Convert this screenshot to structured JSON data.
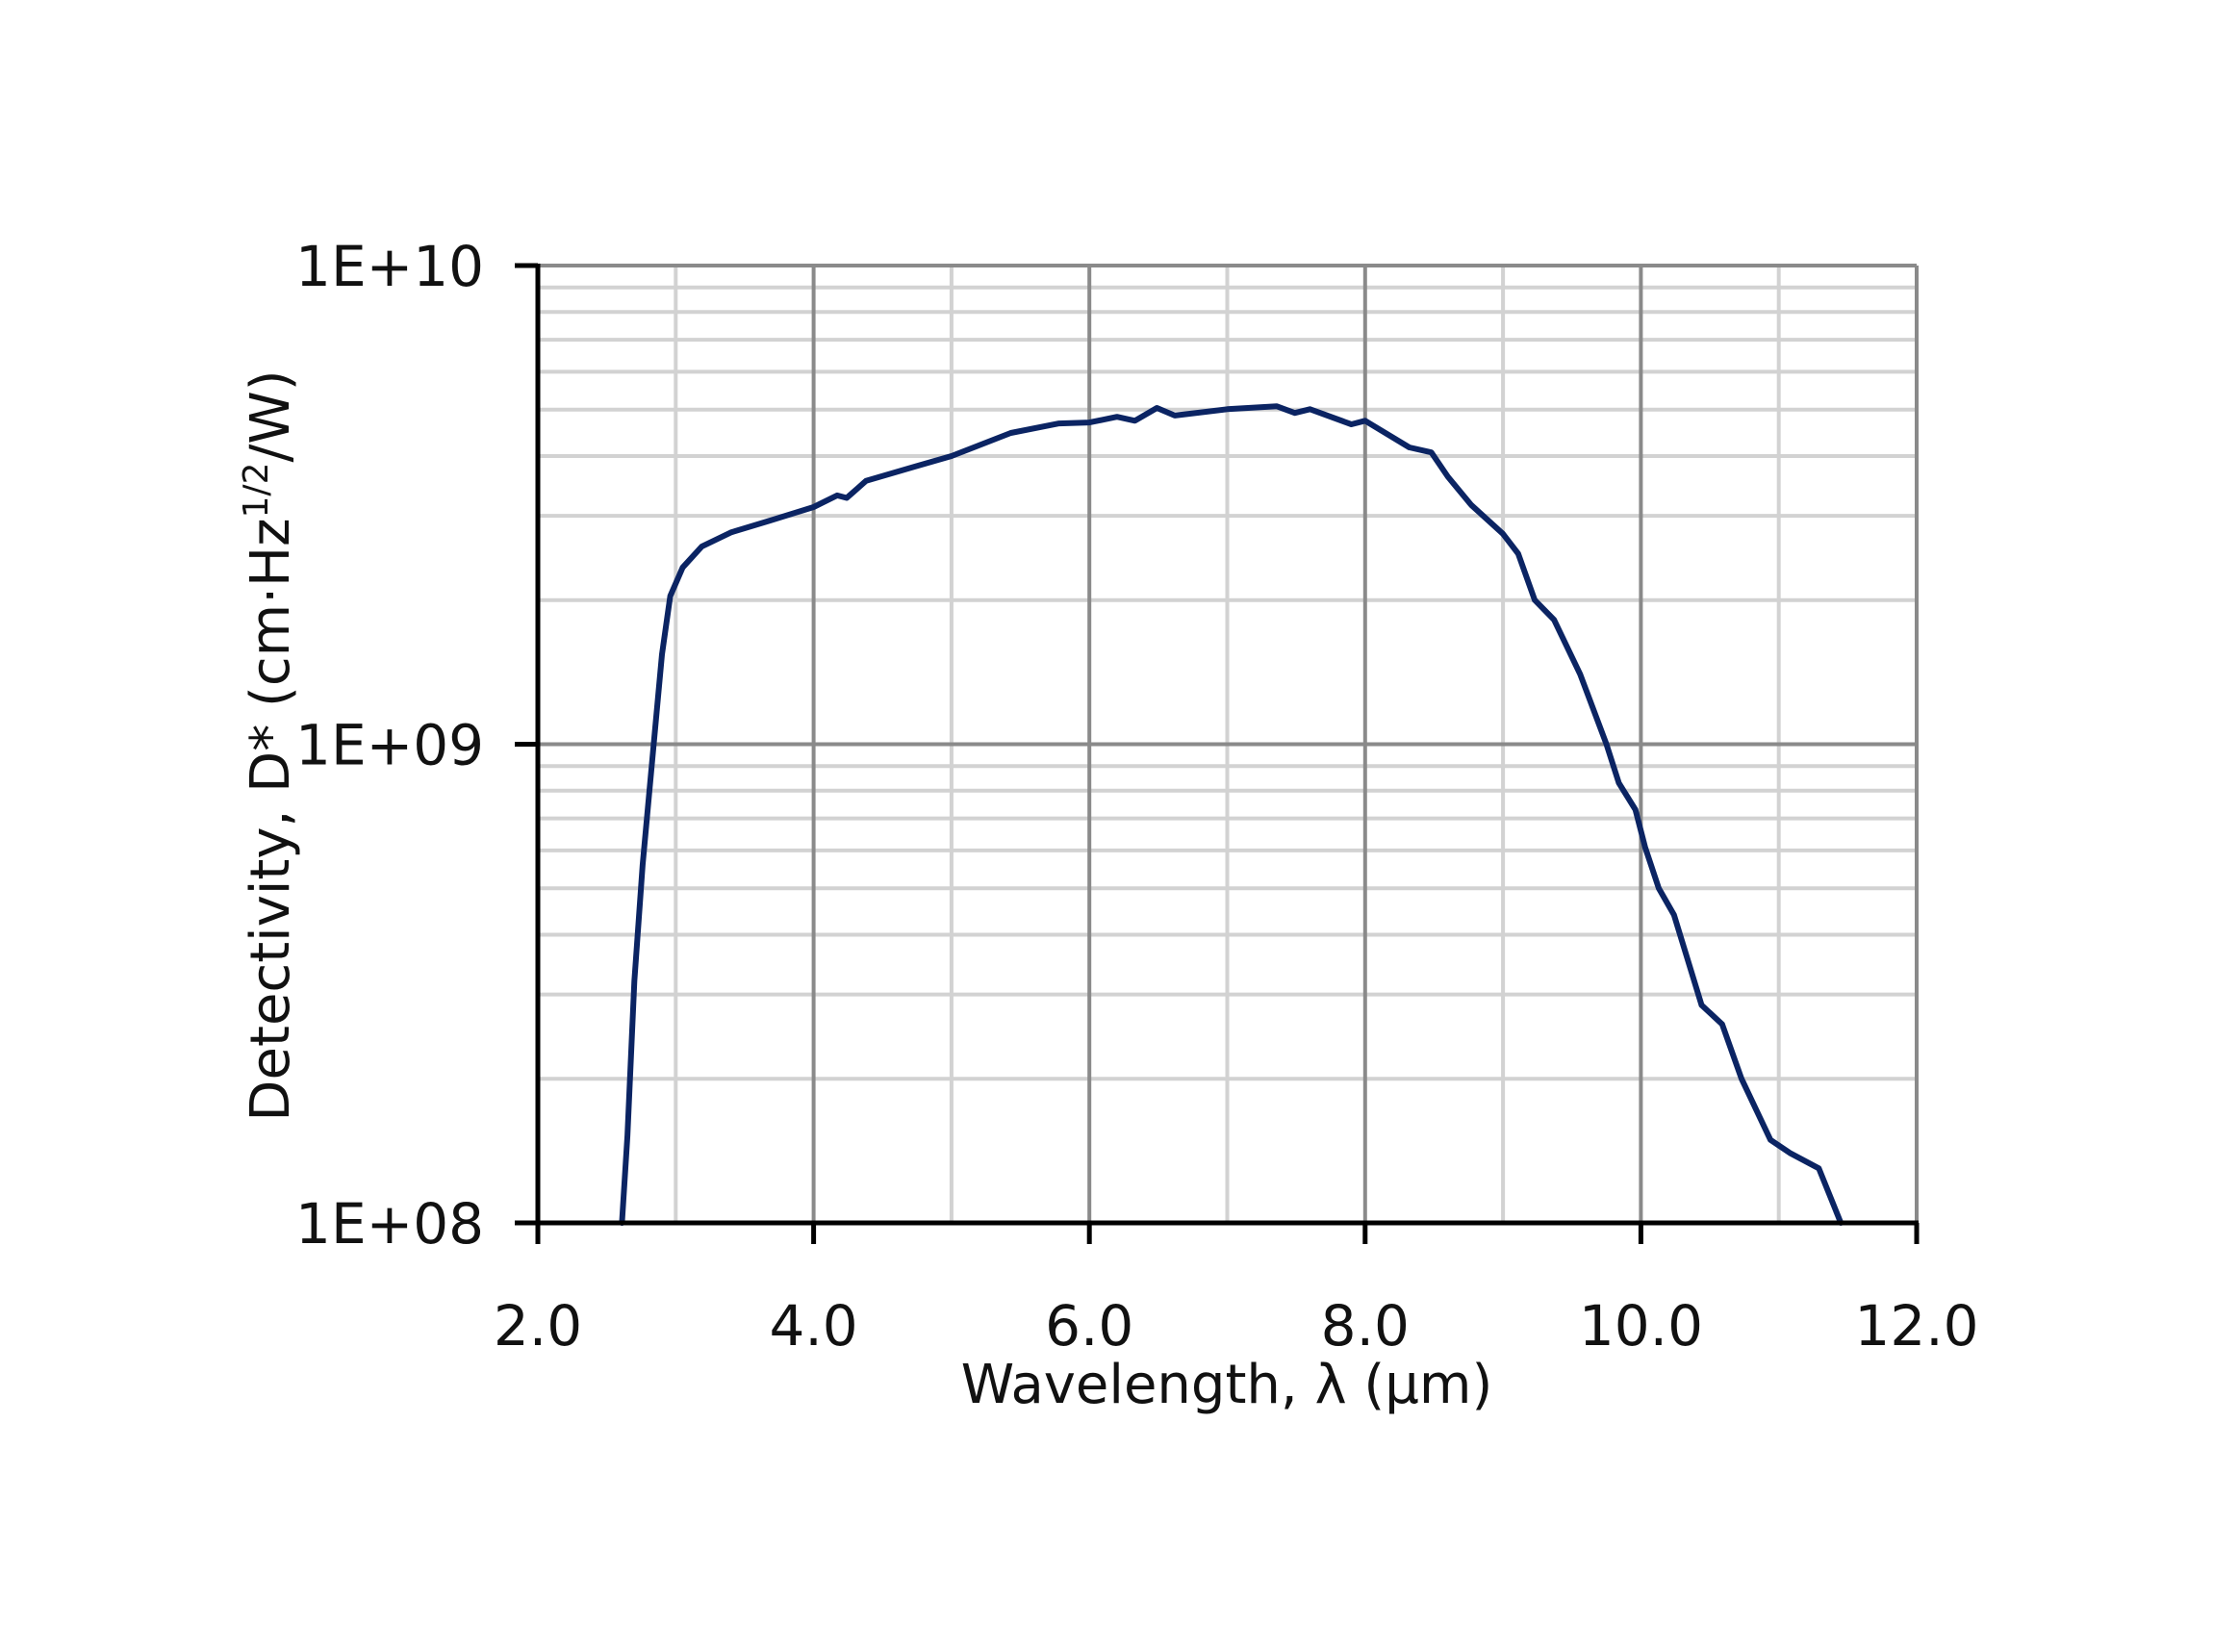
{
  "chart_data": {
    "type": "line",
    "title": "",
    "xlabel": "Wavelength, λ (μm)",
    "ylabel": "Detectivity, D* (cm·Hz^1/2/W)",
    "ylabel_parts": {
      "main": "Detectivity, D* (cm·Hz",
      "sup": "1/2",
      "tail": "/W)"
    },
    "xscale": "linear",
    "yscale": "log",
    "xlim": [
      2.0,
      12.0
    ],
    "ylim": [
      100000000.0,
      10000000000.0
    ],
    "xticks": [
      2.0,
      4.0,
      6.0,
      8.0,
      10.0,
      12.0
    ],
    "xtick_labels": [
      "2.0",
      "4.0",
      "6.0",
      "8.0",
      "10.0",
      "12.0"
    ],
    "yticks": [
      100000000.0,
      1000000000.0,
      10000000000.0
    ],
    "ytick_labels": [
      "1E+08",
      "1E+09",
      "1E+10"
    ],
    "grid": {
      "major": true,
      "minor": true,
      "x_minor_step": 1.0
    },
    "legend": null,
    "series": [
      {
        "name": "D*",
        "color": "#0b2463",
        "x": [
          2.61,
          2.65,
          2.7,
          2.76,
          2.84,
          2.9,
          2.96,
          3.05,
          3.19,
          3.4,
          3.68,
          4.0,
          4.17,
          4.24,
          4.38,
          4.73,
          5.0,
          5.43,
          5.78,
          6.0,
          6.2,
          6.33,
          6.49,
          6.62,
          7.0,
          7.36,
          7.49,
          7.6,
          7.9,
          8.0,
          8.32,
          8.48,
          8.6,
          8.77,
          9.0,
          9.11,
          9.23,
          9.37,
          9.56,
          9.75,
          9.84,
          9.96,
          10.03,
          10.13,
          10.24,
          10.44,
          10.59,
          10.73,
          10.94,
          11.08,
          11.29,
          11.45
        ],
        "y": [
          100000000.0,
          152000000.0,
          320000000.0,
          560000000.0,
          1000000000.0,
          1540000000.0,
          2040000000.0,
          2340000000.0,
          2590000000.0,
          2770000000.0,
          2930000000.0,
          3130000000.0,
          3310000000.0,
          3270000000.0,
          3550000000.0,
          3800000000.0,
          4000000000.0,
          4470000000.0,
          4680000000.0,
          4700000000.0,
          4830000000.0,
          4740000000.0,
          5040000000.0,
          4860000000.0,
          5010000000.0,
          5080000000.0,
          4920000000.0,
          5010000000.0,
          4660000000.0,
          4740000000.0,
          4170000000.0,
          4070000000.0,
          3620000000.0,
          3160000000.0,
          2750000000.0,
          2500000000.0,
          2000000000.0,
          1820000000.0,
          1400000000.0,
          1000000000.0,
          830000000.0,
          730000000.0,
          610000000.0,
          500000000.0,
          440000000.0,
          285000000.0,
          260000000.0,
          200000000.0,
          149000000.0,
          140000000.0,
          130000000.0,
          100000000.0
        ]
      }
    ]
  },
  "colors": {
    "line": "#0b2463",
    "major_grid": "#8a8a8a",
    "minor_grid": "#d2d2d2",
    "axis": "#000000",
    "text": "#111111"
  }
}
